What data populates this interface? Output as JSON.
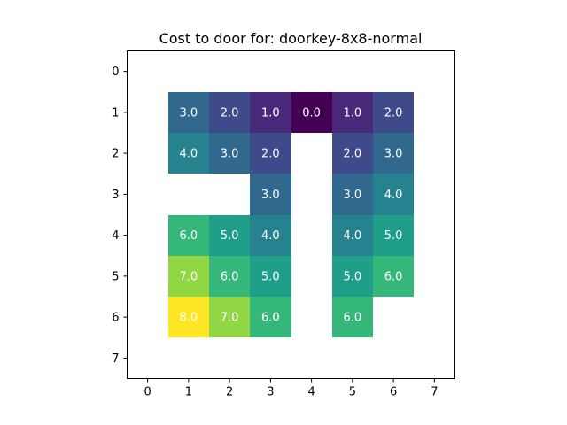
{
  "chart_data": {
    "type": "heatmap",
    "title": "Cost to door for: doorkey-8x8-normal",
    "xlabel": "",
    "ylabel": "",
    "x_ticks": [
      "0",
      "1",
      "2",
      "3",
      "4",
      "5",
      "6",
      "7"
    ],
    "y_ticks": [
      "0",
      "1",
      "2",
      "3",
      "4",
      "5",
      "6",
      "7"
    ],
    "xlim": [
      -0.5,
      7.5
    ],
    "ylim": [
      7.5,
      -0.5
    ],
    "colormap": "viridis",
    "value_range": [
      0,
      8
    ],
    "grid": false,
    "cell_label_format": "one decimal",
    "label_color": "#ffffff",
    "values": [
      [
        null,
        null,
        null,
        null,
        null,
        null,
        null,
        null
      ],
      [
        null,
        3.0,
        2.0,
        1.0,
        0.0,
        1.0,
        2.0,
        null
      ],
      [
        null,
        4.0,
        3.0,
        2.0,
        null,
        2.0,
        3.0,
        null
      ],
      [
        null,
        null,
        null,
        3.0,
        null,
        3.0,
        4.0,
        null
      ],
      [
        null,
        6.0,
        5.0,
        4.0,
        null,
        4.0,
        5.0,
        null
      ],
      [
        null,
        7.0,
        6.0,
        5.0,
        null,
        5.0,
        6.0,
        null
      ],
      [
        null,
        8.0,
        7.0,
        6.0,
        null,
        6.0,
        null,
        null
      ],
      [
        null,
        null,
        null,
        null,
        null,
        null,
        null,
        null
      ]
    ]
  }
}
